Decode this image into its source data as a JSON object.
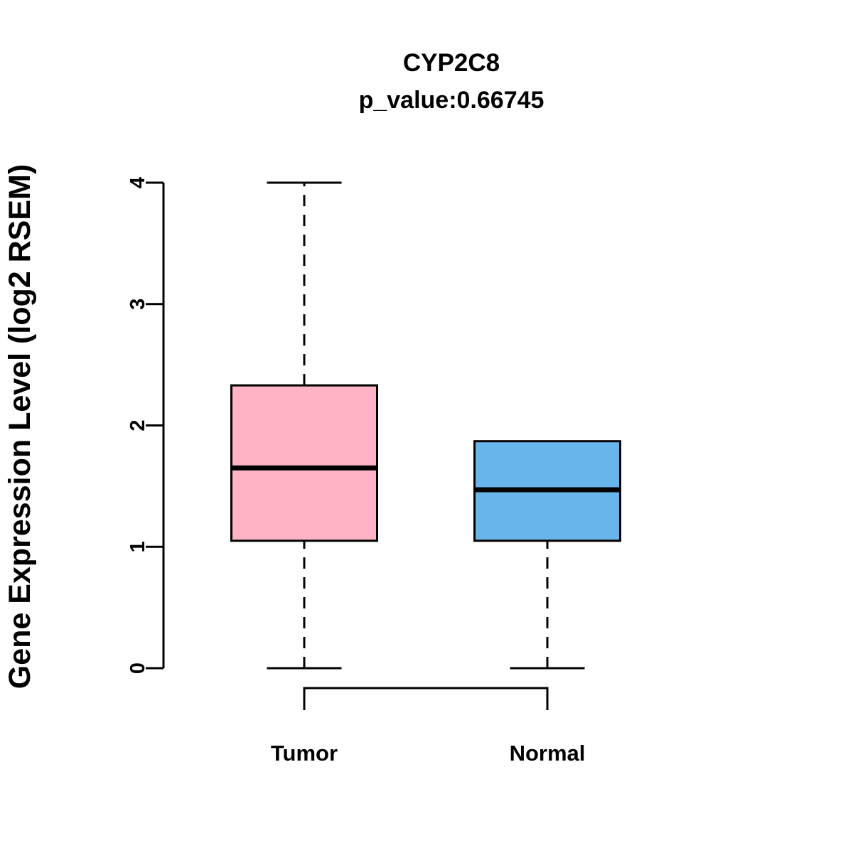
{
  "title": "CYP2C8",
  "subtitle": "p_value:0.66745",
  "chart_data": {
    "type": "boxplot",
    "title": "CYP2C8",
    "subtitle": "p_value:0.66745",
    "xlabel": "",
    "ylabel": "Gene Expression Level (log2 RSEM)",
    "ylim": [
      0,
      4
    ],
    "yticks": [
      0,
      1,
      2,
      3,
      4
    ],
    "categories": [
      "Tumor",
      "Normal"
    ],
    "series": [
      {
        "name": "Tumor",
        "color": "#FFB3C5",
        "whisker_low": 0,
        "q1": 1.05,
        "median": 1.65,
        "q3": 2.33,
        "whisker_high": 4.0
      },
      {
        "name": "Normal",
        "color": "#68B5EC",
        "whisker_low": 0,
        "q1": 1.05,
        "median": 1.47,
        "q3": 1.87,
        "whisker_high": 1.87
      }
    ],
    "comparison_bracket": {
      "between": [
        "Tumor",
        "Normal"
      ]
    },
    "grid": false,
    "legend": false,
    "box_border_color": "#000000",
    "background_color": "#FFFFFF"
  }
}
